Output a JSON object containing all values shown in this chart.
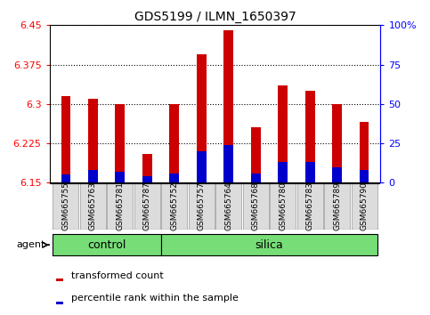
{
  "title": "GDS5199 / ILMN_1650397",
  "samples": [
    "GSM665755",
    "GSM665763",
    "GSM665781",
    "GSM665787",
    "GSM665752",
    "GSM665757",
    "GSM665764",
    "GSM665768",
    "GSM665780",
    "GSM665783",
    "GSM665789",
    "GSM665790"
  ],
  "transformed_count": [
    6.315,
    6.31,
    6.3,
    6.205,
    6.3,
    6.395,
    6.44,
    6.255,
    6.335,
    6.325,
    6.3,
    6.265
  ],
  "percentile_rank": [
    5,
    8,
    7,
    4,
    6,
    20,
    24,
    6,
    13,
    13,
    10,
    8
  ],
  "control_count": 4,
  "y_min": 6.15,
  "y_max": 6.45,
  "y_ticks": [
    6.15,
    6.225,
    6.3,
    6.375,
    6.45
  ],
  "right_y_ticks": [
    0,
    25,
    50,
    75,
    100
  ],
  "right_y_labels": [
    "0",
    "25",
    "50",
    "75",
    "100%"
  ],
  "bar_color": "#CC0000",
  "blue_color": "#0000CC",
  "bar_width": 0.35,
  "tick_bg_color": "#DCDCDC",
  "group_bg_color": "#77DD77",
  "agent_label": "agent",
  "legend_tc": "transformed count",
  "legend_pr": "percentile rank within the sample",
  "group_labels": [
    "control",
    "silica"
  ]
}
